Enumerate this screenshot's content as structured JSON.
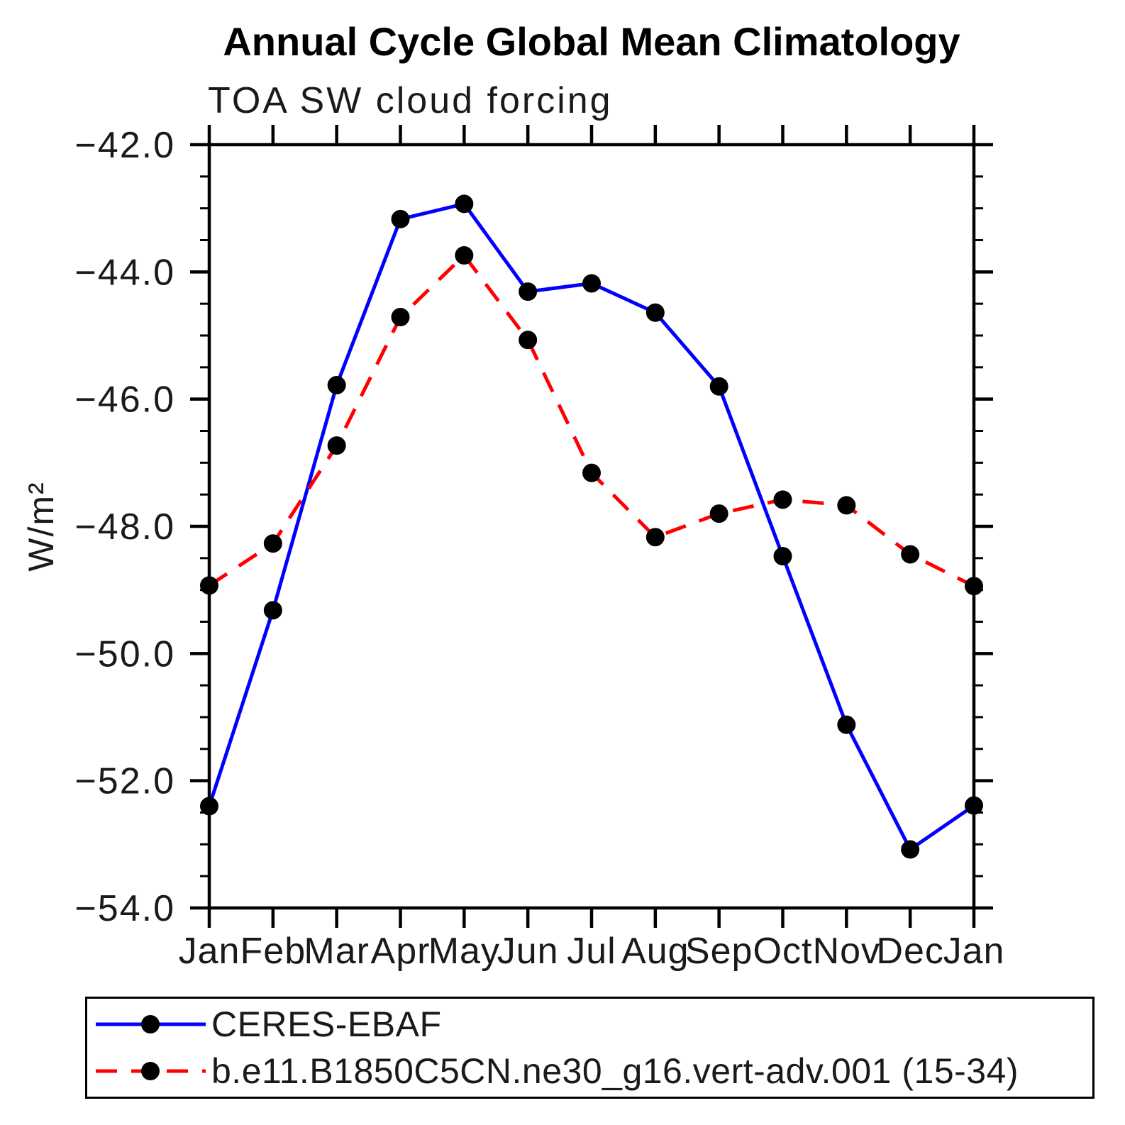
{
  "chart_data": {
    "type": "line",
    "title": "Annual Cycle Global Mean Climatology",
    "subtitle": "TOA SW cloud forcing",
    "ylabel": "W/m²",
    "xlabel": "",
    "x_labels": [
      "Jan",
      "Feb",
      "Mar",
      "Apr",
      "May",
      "Jun",
      "Jul",
      "Aug",
      "Sep",
      "Oct",
      "Nov",
      "Dec",
      "Jan"
    ],
    "ylim": [
      -54.0,
      -42.0
    ],
    "ytick_major_values": [
      -42.0,
      -44.0,
      -46.0,
      -48.0,
      -50.0,
      -52.0,
      -54.0
    ],
    "ytick_major_labels": [
      "−42.0",
      "−44.0",
      "−46.0",
      "−48.0",
      "−50.0",
      "−52.0",
      "−54.0"
    ],
    "ytick_minor_step": 0.5,
    "grid": false,
    "legend_position": "bottom",
    "axis_color": "#000000",
    "marker_color": "#000000",
    "series": [
      {
        "name": "CERES-EBAF",
        "color": "#0000ff",
        "style": "solid",
        "marker": "circle",
        "values": [
          -52.4,
          -49.32,
          -45.78,
          -43.17,
          -42.93,
          -44.31,
          -44.18,
          -44.64,
          -45.8,
          -48.47,
          -51.12,
          -53.08,
          -52.39
        ]
      },
      {
        "name": "b.e11.B1850C5CN.ne30_g16.vert-adv.001 (15-34)",
        "color": "#ff0000",
        "style": "dashed",
        "marker": "circle",
        "values": [
          -48.93,
          -48.27,
          -46.73,
          -44.71,
          -43.74,
          -45.07,
          -47.16,
          -48.17,
          -47.8,
          -47.58,
          -47.67,
          -48.44,
          -48.94
        ]
      }
    ]
  }
}
